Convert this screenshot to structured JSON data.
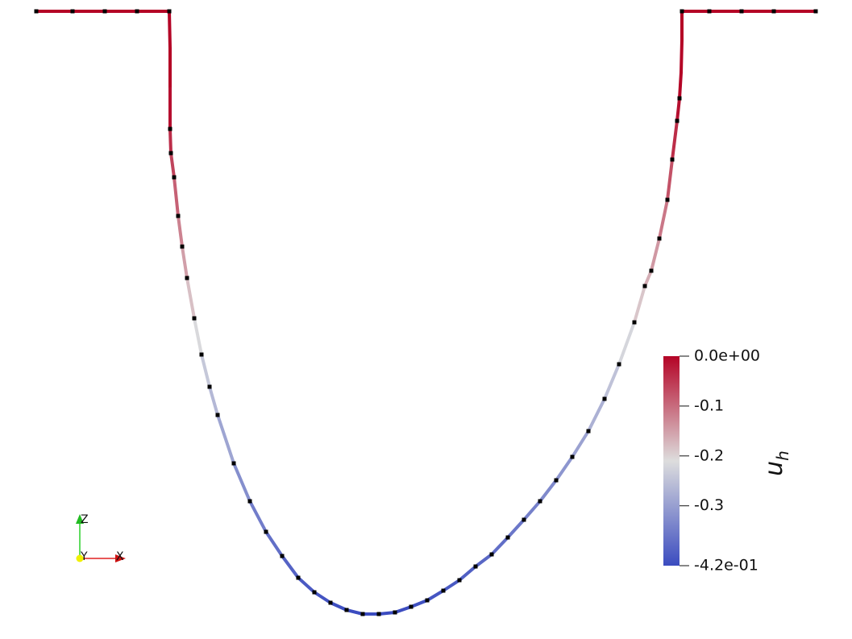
{
  "colorbar": {
    "title": {
      "symbol": "u",
      "subscript": "h"
    },
    "range": [
      -0.42,
      0
    ],
    "ticks": [
      {
        "value": 0,
        "label": "0.0e+00"
      },
      -0.1,
      -0.2,
      -0.3,
      {
        "value": -0.42,
        "label": "-4.2e-01"
      }
    ]
  },
  "axes": {
    "z": "Z",
    "y": "Y",
    "x": "X"
  }
}
